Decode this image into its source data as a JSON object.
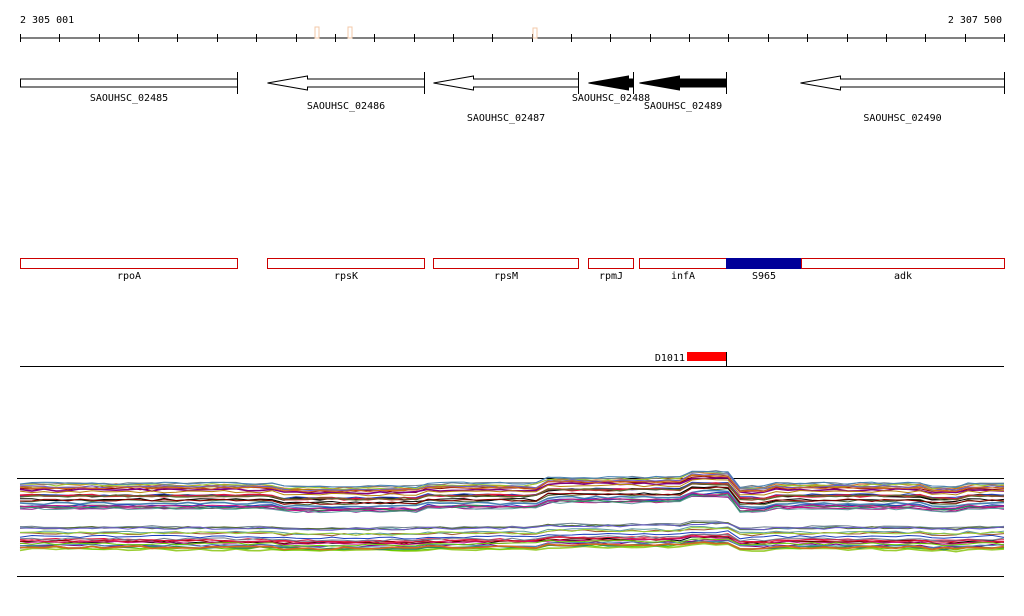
{
  "ruler": {
    "start_label": "2 305 001",
    "end_label": "2 307 500",
    "start_pos": 2305001,
    "end_pos": 2307500
  },
  "genes": [
    {
      "id": "SAOUHSC_02485",
      "start": 2305001,
      "end": 2305553,
      "strand": "+",
      "fill": "#ffffff",
      "label_row": 1
    },
    {
      "id": "SAOUHSC_02486",
      "start": 2305628,
      "end": 2306027,
      "strand": "-",
      "fill": "#ffffff",
      "label_row": 2
    },
    {
      "id": "SAOUHSC_02487",
      "start": 2306050,
      "end": 2306418,
      "strand": "-",
      "fill": "#ffffff",
      "label_row": 3
    },
    {
      "id": "SAOUHSC_02488",
      "start": 2306443,
      "end": 2306557,
      "strand": "-",
      "fill": "#000000",
      "label_row": 1
    },
    {
      "id": "SAOUHSC_02489",
      "start": 2306573,
      "end": 2306795,
      "strand": "-",
      "fill": "#000000",
      "label_row": 2
    },
    {
      "id": "SAOUHSC_02490",
      "start": 2306983,
      "end": 2307500,
      "strand": "-",
      "fill": "#ffffff",
      "label_row": 3
    }
  ],
  "features": [
    {
      "name": "rpoA",
      "start": 2305001,
      "end": 2305553,
      "color": "#cc0000",
      "filled": false
    },
    {
      "name": "rpsK",
      "start": 2305628,
      "end": 2306027,
      "color": "#cc0000",
      "filled": false
    },
    {
      "name": "rpsM",
      "start": 2306050,
      "end": 2306418,
      "color": "#cc0000",
      "filled": false
    },
    {
      "name": "rpmJ",
      "start": 2306443,
      "end": 2306557,
      "color": "#cc0000",
      "filled": false
    },
    {
      "name": "infA",
      "start": 2306573,
      "end": 2306795,
      "color": "#cc0000",
      "filled": false
    },
    {
      "name": "S965",
      "start": 2306795,
      "end": 2306985,
      "color": "#000099",
      "filled": true
    },
    {
      "name": "adk",
      "start": 2306985,
      "end": 2307500,
      "color": "#cc0000",
      "filled": false
    }
  ],
  "marker": {
    "name": "D1011",
    "start": 2306695,
    "end": 2306795,
    "color": "#ff0000"
  },
  "ruler_ticks": {
    "major_color": "#000000",
    "faint_color": "#f3c9a8"
  },
  "expression": {
    "series_count": 48,
    "palette": [
      "#000000",
      "#8b0000",
      "#1f3fbf",
      "#2e8b57",
      "#a0522d",
      "#800080",
      "#c71585",
      "#4682b4",
      "#b8860b",
      "#556b2f",
      "#d2691e",
      "#5f9ea0",
      "#9acd32",
      "#708090",
      "#dc143c",
      "#6a5acd"
    ],
    "lower_band_color": "#66cc00"
  }
}
